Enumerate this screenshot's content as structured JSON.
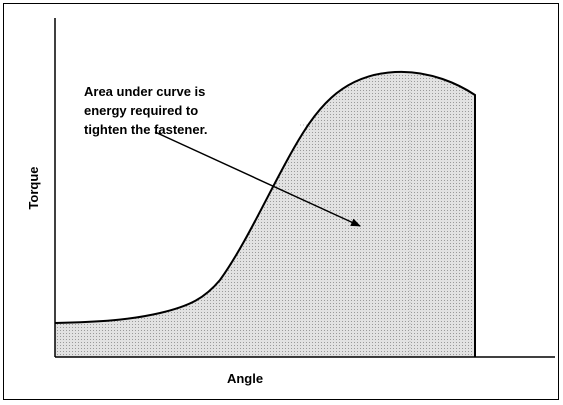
{
  "annotation": {
    "lines": [
      "Area under curve is",
      "energy required to",
      "tighten the fastener."
    ]
  },
  "axes": {
    "y_label": "Torque",
    "x_label": "Angle"
  }
}
